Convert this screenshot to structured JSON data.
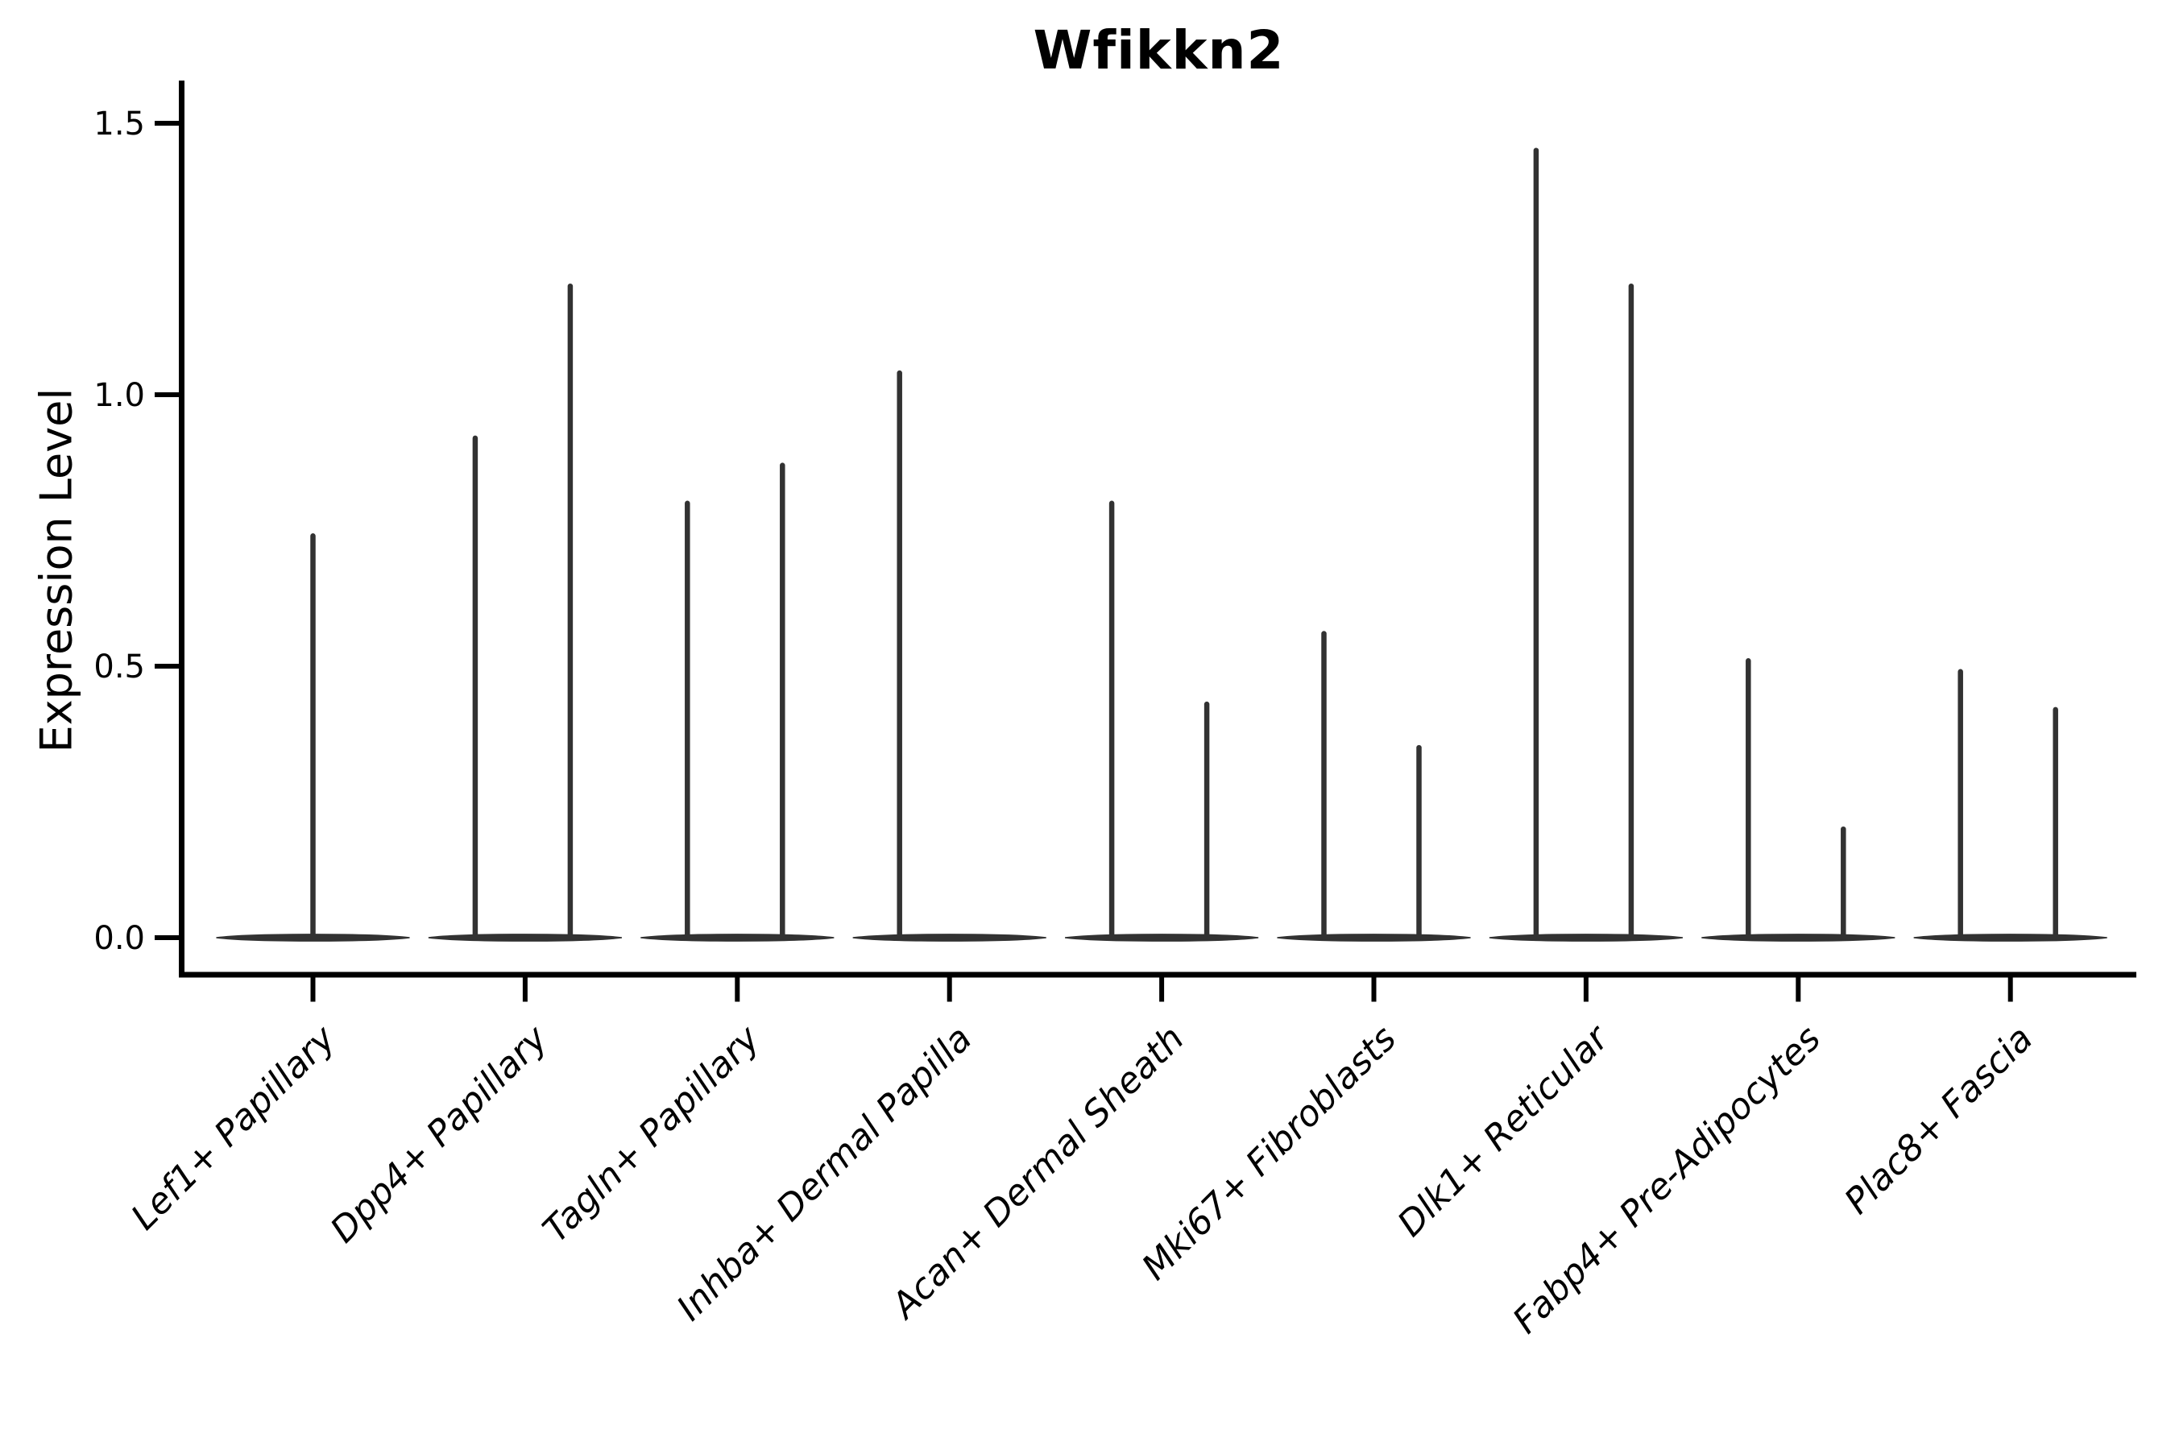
{
  "chart_data": {
    "type": "violin",
    "title": "Wfikkn2",
    "ylabel": "Expression Level",
    "xlabel": "",
    "categories": [
      "Lef1+ Papillary",
      "Dpp4+ Papillary",
      "Tagln+ Papillary",
      "Inhba+ Dermal Papilla",
      "Acan+ Dermal Sheath",
      "Mki67+ Fibroblasts",
      "Dlk1+ Reticular",
      "Fabp4+ Pre-Adipocytes",
      "Plac8+ Fascia"
    ],
    "ytick_labels": [
      "0.0",
      "0.5",
      "1.0",
      "1.5"
    ],
    "ytick_values": [
      0.0,
      0.5,
      1.0,
      1.5
    ],
    "ylim": [
      -0.068,
      1.578
    ],
    "grid": false,
    "legend": "none",
    "violins": [
      {
        "category": "Lef1+ Papillary",
        "spikes": [
          {
            "pos": "center",
            "max": 0.74
          }
        ]
      },
      {
        "category": "Dpp4+ Papillary",
        "spikes": [
          {
            "pos": "left",
            "max": 0.92
          },
          {
            "pos": "right",
            "max": 1.2
          }
        ]
      },
      {
        "category": "Tagln+ Papillary",
        "spikes": [
          {
            "pos": "left",
            "max": 0.8
          },
          {
            "pos": "right",
            "max": 0.87
          }
        ]
      },
      {
        "category": "Inhba+ Dermal Papilla",
        "spikes": [
          {
            "pos": "left",
            "max": 1.04
          }
        ]
      },
      {
        "category": "Acan+ Dermal Sheath",
        "spikes": [
          {
            "pos": "left",
            "max": 0.8
          },
          {
            "pos": "right",
            "max": 0.43
          }
        ]
      },
      {
        "category": "Mki67+ Fibroblasts",
        "spikes": [
          {
            "pos": "left",
            "max": 0.56
          },
          {
            "pos": "right",
            "max": 0.35
          }
        ]
      },
      {
        "category": "Dlk1+ Reticular",
        "spikes": [
          {
            "pos": "left",
            "max": 1.45
          },
          {
            "pos": "right",
            "max": 1.2
          }
        ]
      },
      {
        "category": "Fabp4+ Pre-Adipocytes",
        "spikes": [
          {
            "pos": "left",
            "max": 0.51
          },
          {
            "pos": "right",
            "max": 0.2
          }
        ]
      },
      {
        "category": "Plac8+ Fascia",
        "spikes": [
          {
            "pos": "left",
            "max": 0.49
          },
          {
            "pos": "right",
            "max": 0.42
          }
        ]
      }
    ],
    "colors": {
      "ink": "#323232",
      "axis": "#000000",
      "text": "#000000",
      "background": "#ffffff"
    }
  }
}
